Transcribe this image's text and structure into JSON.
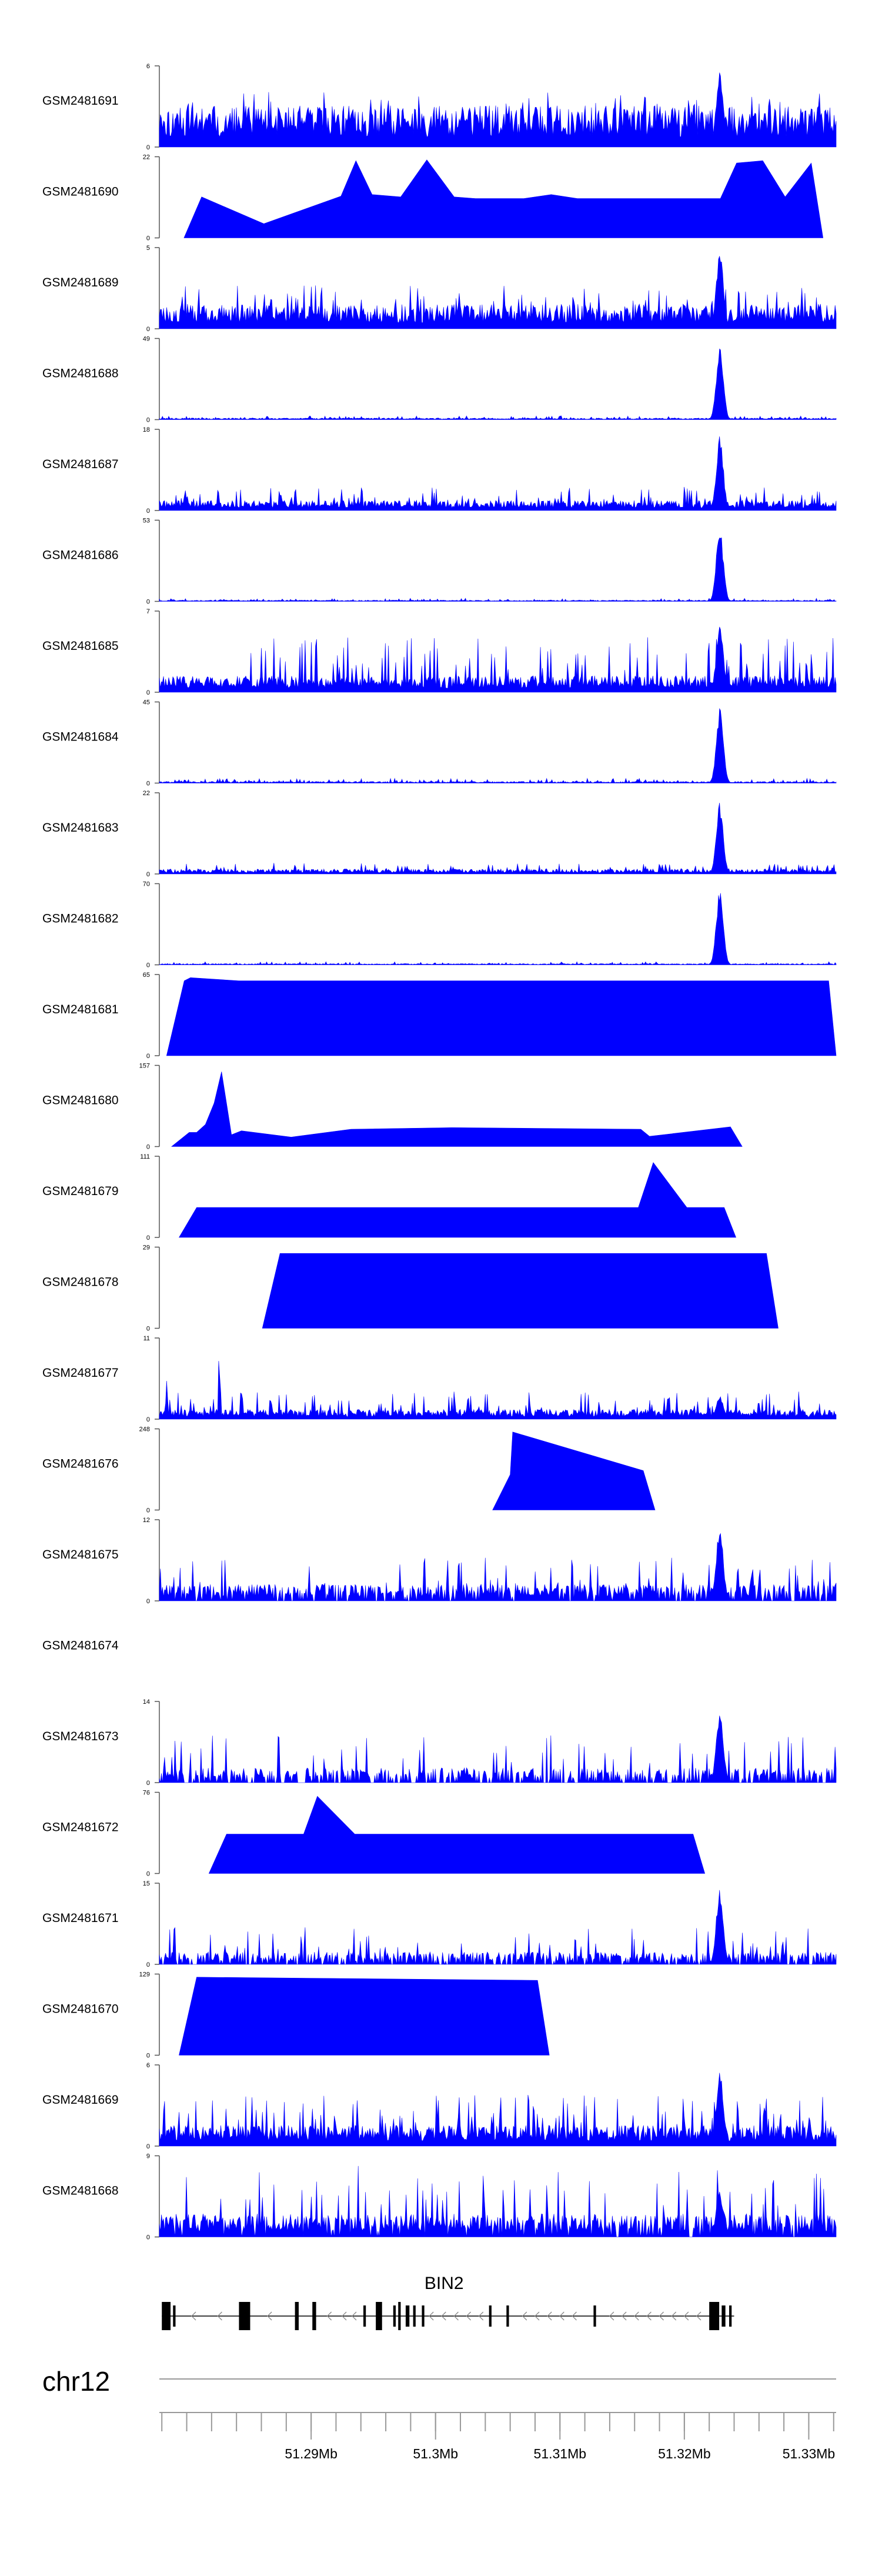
{
  "chart_data": {
    "type": "area",
    "title": "",
    "xlabel": "",
    "ylabel": "",
    "grid": false,
    "legend": "none",
    "chromosome": "chr12",
    "xlim": [
      51.2778,
      51.3322
    ],
    "x_unit": "Mb",
    "x_ticks": [
      51.29,
      51.3,
      51.31,
      51.32,
      51.33
    ],
    "x_tick_labels": [
      "51.29Mb",
      "51.3Mb",
      "51.31Mb",
      "51.32Mb",
      "51.33Mb"
    ],
    "x_minor_ticks": [
      51.278,
      51.28,
      51.282,
      51.284,
      51.286,
      51.288,
      51.29,
      51.292,
      51.294,
      51.296,
      51.298,
      51.3,
      51.302,
      51.304,
      51.306,
      51.308,
      51.31,
      51.312,
      51.314,
      51.316,
      51.318,
      51.32,
      51.322,
      51.324,
      51.326,
      51.328,
      51.33,
      51.332
    ],
    "peak_region": [
      51.3225,
      51.3232
    ],
    "series": [
      {
        "name": "GSM2481691",
        "ymax": 6,
        "style": "noisy",
        "base": 0.5,
        "max_frac": 0.7,
        "peak_frac": 1.0,
        "density": 1.0,
        "seed": 11,
        "ymin_label": "0",
        "ymax_label": "6"
      },
      {
        "name": "GSM2481690",
        "ymax": 22,
        "style": "sparse",
        "peaks": [
          [
            51.2812,
            0.52
          ],
          [
            51.2862,
            0.18
          ],
          [
            51.2924,
            0.53
          ],
          [
            51.2936,
            0.98
          ],
          [
            51.2949,
            0.55
          ],
          [
            51.2972,
            0.52
          ],
          [
            51.2993,
            0.99
          ],
          [
            51.3015,
            0.52
          ],
          [
            51.3032,
            0.5
          ],
          [
            51.3052,
            0.5
          ],
          [
            51.3071,
            0.5
          ],
          [
            51.3093,
            0.55
          ],
          [
            51.3114,
            0.5
          ],
          [
            51.3141,
            0.5
          ],
          [
            51.3163,
            0.5
          ],
          [
            51.3185,
            0.5
          ],
          [
            51.3204,
            0.5
          ],
          [
            51.3217,
            0.5
          ],
          [
            51.3229,
            0.5
          ],
          [
            51.3242,
            0.95
          ],
          [
            51.3263,
            0.98
          ],
          [
            51.3281,
            0.52
          ],
          [
            51.3302,
            0.95
          ]
        ],
        "ymin_label": "0",
        "ymax_label": "22"
      },
      {
        "name": "GSM2481689",
        "ymax": 5,
        "style": "noisy",
        "base": 0.3,
        "max_frac": 0.55,
        "peak_frac": 1.0,
        "density": 1.0,
        "seed": 23,
        "ymin_label": "0",
        "ymax_label": "5"
      },
      {
        "name": "GSM2481688",
        "ymax": 49,
        "style": "noisy",
        "base": 0.02,
        "max_frac": 0.05,
        "peak_frac": 0.95,
        "density": 1.0,
        "seed": 37,
        "ymin_label": "0",
        "ymax_label": "49"
      },
      {
        "name": "GSM2481687",
        "ymax": 18,
        "style": "noisy",
        "base": 0.12,
        "max_frac": 0.3,
        "peak_frac": 0.96,
        "density": 1.0,
        "seed": 41,
        "ymin_label": "0",
        "ymax_label": "18"
      },
      {
        "name": "GSM2481686",
        "ymax": 53,
        "style": "noisy",
        "base": 0.015,
        "max_frac": 0.04,
        "peak_frac": 0.95,
        "density": 1.0,
        "seed": 53,
        "ymin_label": "0",
        "ymax_label": "53"
      },
      {
        "name": "GSM2481685",
        "ymax": 7,
        "style": "noisy",
        "base": 0.2,
        "max_frac": 0.7,
        "peak_frac": 0.9,
        "density": 1.0,
        "seed": 61,
        "ymin_label": "0",
        "ymax_label": "7"
      },
      {
        "name": "GSM2481684",
        "ymax": 45,
        "style": "noisy",
        "base": 0.02,
        "max_frac": 0.06,
        "peak_frac": 0.95,
        "density": 1.0,
        "seed": 71,
        "ymin_label": "0",
        "ymax_label": "45"
      },
      {
        "name": "GSM2481683",
        "ymax": 22,
        "style": "noisy",
        "base": 0.06,
        "max_frac": 0.14,
        "peak_frac": 0.92,
        "density": 1.0,
        "seed": 83,
        "ymin_label": "0",
        "ymax_label": "22"
      },
      {
        "name": "GSM2481682",
        "ymax": 70,
        "style": "noisy",
        "base": 0.015,
        "max_frac": 0.04,
        "peak_frac": 0.96,
        "density": 1.0,
        "seed": 97,
        "ymin_label": "0",
        "ymax_label": "70"
      },
      {
        "name": "GSM2481681",
        "ymax": 65,
        "style": "sparse",
        "peaks": [
          [
            51.2798,
            0.95
          ],
          [
            51.2803,
            0.99
          ],
          [
            51.2842,
            0.95
          ],
          [
            51.3316,
            0.95
          ]
        ],
        "ymin_label": "0",
        "ymax_label": "65"
      },
      {
        "name": "GSM2481680",
        "ymax": 157,
        "style": "sparse",
        "peaks": [
          [
            51.2802,
            0.18
          ],
          [
            51.2808,
            0.18
          ],
          [
            51.2815,
            0.28
          ],
          [
            51.2822,
            0.55
          ],
          [
            51.2828,
            0.95
          ],
          [
            51.2836,
            0.15
          ],
          [
            51.2844,
            0.2
          ],
          [
            51.2884,
            0.12
          ],
          [
            51.2932,
            0.22
          ],
          [
            51.3013,
            0.24
          ],
          [
            51.3165,
            0.22
          ],
          [
            51.3172,
            0.13
          ],
          [
            51.3237,
            0.25
          ]
        ],
        "ymin_label": "0",
        "ymax_label": "157"
      },
      {
        "name": "GSM2481679",
        "ymax": 111,
        "style": "sparse",
        "peaks": [
          [
            51.2808,
            0.38
          ],
          [
            51.2842,
            0.38
          ],
          [
            51.3163,
            0.38
          ],
          [
            51.3175,
            0.95
          ],
          [
            51.3202,
            0.38
          ],
          [
            51.3232,
            0.38
          ]
        ],
        "ymin_label": "0",
        "ymax_label": "111"
      },
      {
        "name": "GSM2481678",
        "ymax": 29,
        "style": "sparse",
        "peaks": [
          [
            51.2875,
            0.95
          ],
          [
            51.2912,
            0.95
          ],
          [
            51.2932,
            0.95
          ],
          [
            51.3007,
            0.95
          ],
          [
            51.3015,
            0.95
          ],
          [
            51.3075,
            0.95
          ],
          [
            51.3101,
            0.95
          ],
          [
            51.3115,
            0.95
          ],
          [
            51.3261,
            0.95
          ],
          [
            51.3266,
            0.95
          ]
        ],
        "ymin_label": "0",
        "ymax_label": "29"
      },
      {
        "name": "GSM2481677",
        "ymax": 11,
        "style": "noisy",
        "base": 0.12,
        "max_frac": 0.35,
        "peak_frac": 0.3,
        "density": 1.0,
        "seed": 131,
        "early_peaks": [
          [
            51.2784,
            0.55
          ],
          [
            51.2826,
            0.98
          ]
        ],
        "ymin_label": "0",
        "ymax_label": "11"
      },
      {
        "name": "GSM2481676",
        "ymax": 248,
        "style": "sparse",
        "peaks": [
          [
            51.306,
            0.45
          ],
          [
            51.3062,
            0.99
          ],
          [
            51.3167,
            0.5
          ]
        ],
        "ymin_label": "0",
        "ymax_label": "248"
      },
      {
        "name": "GSM2481675",
        "ymax": 12,
        "style": "noisy",
        "base": 0.2,
        "max_frac": 0.55,
        "peak_frac": 0.95,
        "density": 0.8,
        "seed": 149,
        "ymin_label": "0",
        "ymax_label": "12"
      },
      {
        "name": "GSM2481674",
        "ymax": null,
        "style": "empty",
        "ymin_label": "",
        "ymax_label": ""
      },
      {
        "name": "GSM2481673",
        "ymax": 14,
        "style": "noisy",
        "base": 0.18,
        "max_frac": 0.6,
        "peak_frac": 0.95,
        "density": 0.65,
        "seed": 163,
        "ymin_label": "0",
        "ymax_label": "14"
      },
      {
        "name": "GSM2481672",
        "ymax": 76,
        "style": "sparse",
        "peaks": [
          [
            51.2832,
            0.5
          ],
          [
            51.2863,
            0.5
          ],
          [
            51.2894,
            0.5
          ],
          [
            51.2905,
            0.98
          ],
          [
            51.2935,
            0.5
          ],
          [
            51.2982,
            0.5
          ],
          [
            51.3012,
            0.5
          ],
          [
            51.3207,
            0.5
          ]
        ],
        "ymin_label": "0",
        "ymax_label": "76"
      },
      {
        "name": "GSM2481671",
        "ymax": 15,
        "style": "noisy",
        "base": 0.15,
        "max_frac": 0.48,
        "peak_frac": 0.98,
        "density": 0.75,
        "seed": 181,
        "ymin_label": "0",
        "ymax_label": "15"
      },
      {
        "name": "GSM2481670",
        "ymax": 129,
        "style": "sparse",
        "peaks": [
          [
            51.2808,
            0.99
          ],
          [
            51.3082,
            0.95
          ]
        ],
        "ymin_label": "0",
        "ymax_label": "129"
      },
      {
        "name": "GSM2481669",
        "ymax": 6,
        "style": "noisy",
        "base": 0.25,
        "max_frac": 0.65,
        "peak_frac": 0.98,
        "density": 1.0,
        "seed": 193,
        "ymin_label": "0",
        "ymax_label": "6"
      },
      {
        "name": "GSM2481668",
        "ymax": 9,
        "style": "noisy",
        "base": 0.28,
        "max_frac": 0.9,
        "peak_frac": 0.6,
        "density": 0.9,
        "seed": 211,
        "ymin_label": "0",
        "ymax_label": "9"
      }
    ],
    "gene": {
      "name": "BIN2",
      "strand": "-",
      "start": 51.278,
      "end": 51.324,
      "exons": [
        [
          51.278,
          51.2787,
          "tall"
        ],
        [
          51.2789,
          51.2791,
          "short"
        ],
        [
          51.2842,
          51.2851,
          "tall"
        ],
        [
          51.2887,
          51.289,
          "tall"
        ],
        [
          51.2901,
          51.2904,
          "tall"
        ],
        [
          51.2942,
          51.2944,
          "short"
        ],
        [
          51.2952,
          51.2957,
          "tall"
        ],
        [
          51.2966,
          51.2968,
          "short"
        ],
        [
          51.297,
          51.2972,
          "tall"
        ],
        [
          51.2976,
          51.2979,
          "short"
        ],
        [
          51.2982,
          51.2984,
          "short"
        ],
        [
          51.2989,
          51.2991,
          "short"
        ],
        [
          51.3043,
          51.3045,
          "short"
        ],
        [
          51.3057,
          51.3059,
          "short"
        ],
        [
          51.3127,
          51.3129,
          "short"
        ],
        [
          51.322,
          51.3228,
          "tall"
        ],
        [
          51.323,
          51.3233,
          "short"
        ],
        [
          51.3236,
          51.3238,
          "short"
        ]
      ],
      "arrow_positions": [
        51.2804,
        51.2825,
        51.2865,
        51.2913,
        51.2925,
        51.2933,
        51.2995,
        51.3005,
        51.3015,
        51.3025,
        51.3035,
        51.307,
        51.308,
        51.309,
        51.31,
        51.311,
        51.314,
        51.315,
        51.316,
        51.317,
        51.318,
        51.319,
        51.32,
        51.321
      ]
    }
  }
}
